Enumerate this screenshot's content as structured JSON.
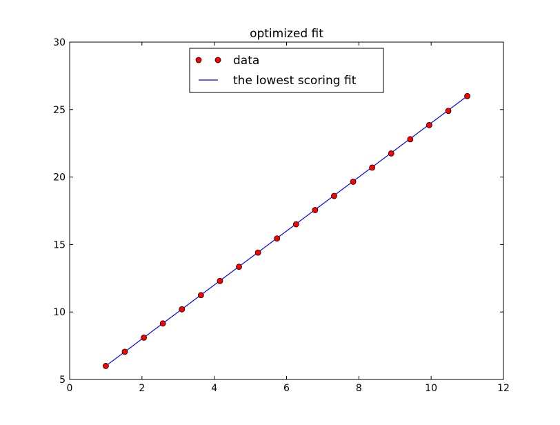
{
  "chart_data": {
    "type": "line",
    "title": "optimized fit",
    "xlabel": "",
    "ylabel": "",
    "xlim": [
      0,
      12
    ],
    "ylim": [
      5,
      30
    ],
    "xticks": [
      0,
      2,
      4,
      6,
      8,
      10,
      12
    ],
    "yticks": [
      5,
      10,
      15,
      20,
      25,
      30
    ],
    "grid": false,
    "legend_position": "upper center",
    "series": [
      {
        "name": "data",
        "kind": "markers",
        "color": "#ff0000",
        "edgecolor": "#000000",
        "x": [
          1.0,
          1.526,
          2.053,
          2.579,
          3.105,
          3.632,
          4.158,
          4.684,
          5.211,
          5.737,
          6.263,
          6.789,
          7.316,
          7.842,
          8.368,
          8.895,
          9.421,
          9.947,
          10.474,
          11.0
        ],
        "y": [
          6.0,
          7.05,
          8.1,
          9.15,
          10.2,
          11.25,
          12.3,
          13.35,
          14.4,
          15.45,
          16.5,
          17.55,
          18.6,
          19.65,
          20.7,
          21.75,
          22.8,
          23.85,
          24.9,
          26.0
        ]
      },
      {
        "name": "the lowest scoring fit",
        "kind": "line",
        "color": "#0000ff",
        "x": [
          1.0,
          11.0
        ],
        "y": [
          6.0,
          26.0
        ]
      }
    ]
  }
}
